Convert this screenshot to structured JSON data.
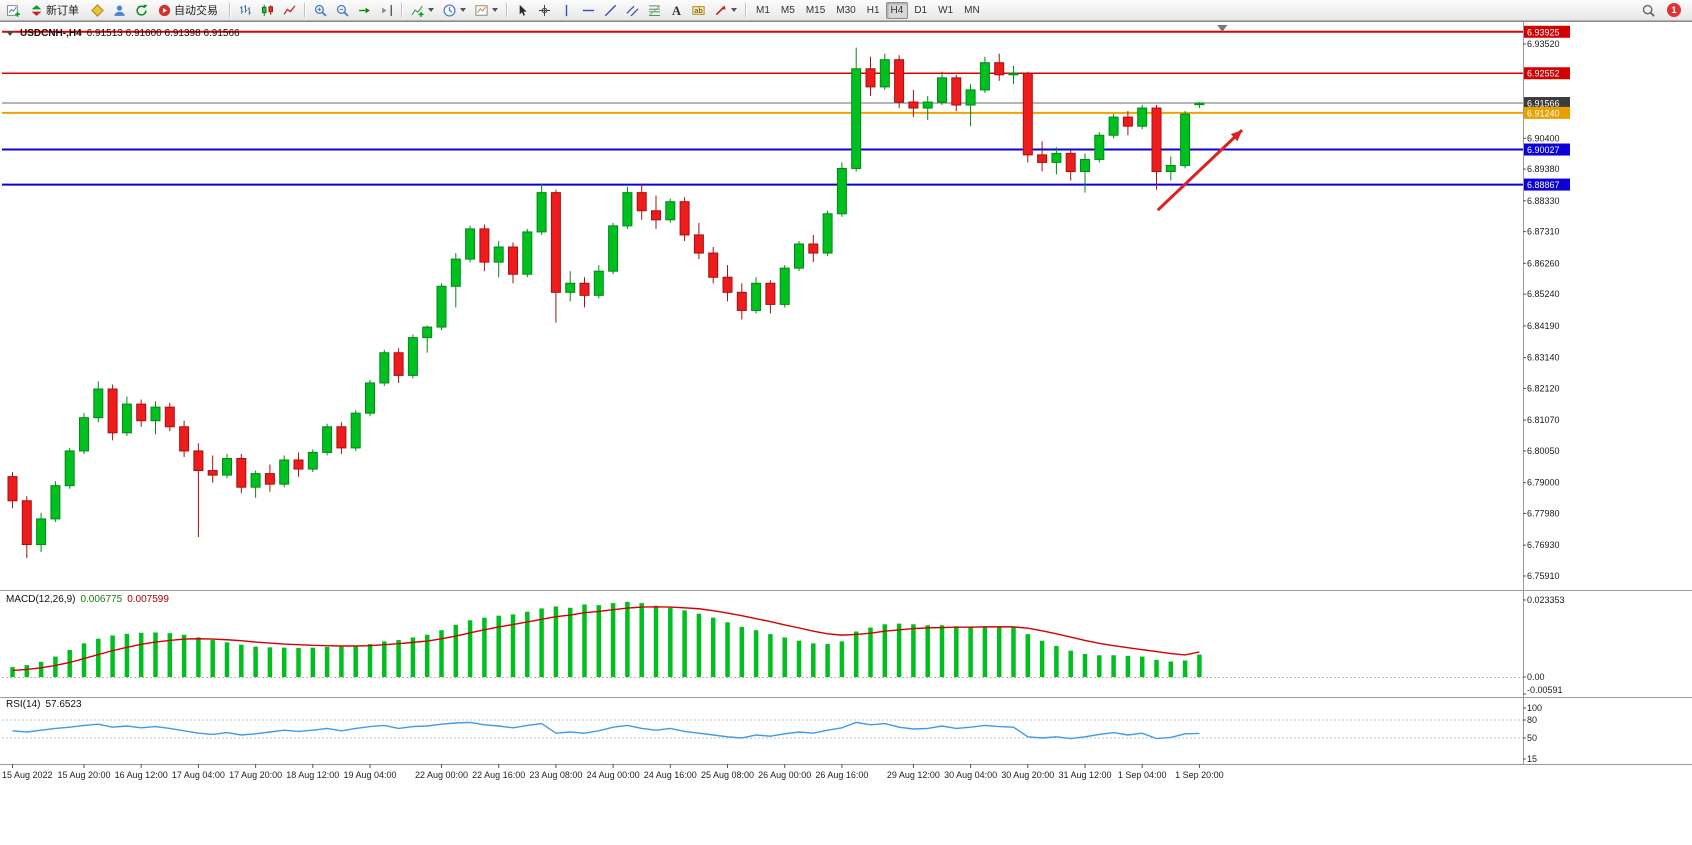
{
  "toolbar": {
    "groups": [
      {
        "name": "standard",
        "items": [
          {
            "id": "new-chart"
          },
          {
            "id": "new-order",
            "label": "新订单"
          },
          {
            "id": "metaeditor"
          },
          {
            "id": "profiles"
          },
          {
            "id": "refresh"
          },
          {
            "id": "autotrading",
            "label": "自动交易"
          }
        ]
      },
      {
        "name": "chart-types",
        "items": [
          {
            "id": "bars"
          },
          {
            "id": "candles"
          },
          {
            "id": "line-chart"
          }
        ]
      },
      {
        "name": "zoom",
        "items": [
          {
            "id": "zoom-in"
          },
          {
            "id": "zoom-out"
          },
          {
            "id": "auto-scroll"
          },
          {
            "id": "chart-shift"
          }
        ]
      },
      {
        "name": "chart-tools",
        "items": [
          {
            "id": "indicators",
            "dropdown": true
          },
          {
            "id": "periods",
            "dropdown": true
          },
          {
            "id": "templates",
            "dropdown": true
          }
        ]
      },
      {
        "name": "line-studies",
        "items": [
          {
            "id": "cursor"
          },
          {
            "id": "crosshair"
          },
          {
            "id": "vertical-line"
          },
          {
            "id": "horizontal-line"
          },
          {
            "id": "trendline"
          },
          {
            "id": "channel"
          },
          {
            "id": "fibonacci"
          },
          {
            "id": "text"
          },
          {
            "id": "text-label"
          },
          {
            "id": "arrows",
            "dropdown": true
          }
        ]
      },
      {
        "name": "timeframes",
        "type": "timeframes",
        "items": [
          "M1",
          "M5",
          "M15",
          "M30",
          "H1",
          "H4",
          "D1",
          "W1",
          "MN"
        ],
        "active": "H4"
      }
    ],
    "right": {
      "badge": "1"
    }
  },
  "chart_data": {
    "type": "candlestick",
    "title": "USDCNH-,H4",
    "ohlc_text": "6.91513 6.91600 6.91398 6.91566",
    "colors": {
      "up": "#00c020",
      "up_border": "#008a16",
      "down": "#ee1c1c",
      "down_border": "#a80f0f",
      "macd_hist": "#00c020",
      "macd_signal": "#d40000",
      "rsi_line": "#3d9be9",
      "hline_red": "#e00000",
      "hline_orange": "#f2a200",
      "hline_blue": "#0b00d8"
    },
    "candles": [
      [
        6.792,
        6.7935,
        6.7815,
        6.784
      ],
      [
        6.784,
        6.7855,
        6.765,
        6.7695
      ],
      [
        6.7695,
        6.78,
        6.767,
        6.778
      ],
      [
        6.778,
        6.7905,
        6.777,
        6.789
      ],
      [
        6.789,
        6.8015,
        6.788,
        6.8005
      ],
      [
        6.8005,
        6.813,
        6.7995,
        6.8115
      ],
      [
        6.8115,
        6.8235,
        6.81,
        6.821
      ],
      [
        6.821,
        6.8225,
        6.804,
        6.8065
      ],
      [
        6.8065,
        6.8185,
        6.8055,
        6.816
      ],
      [
        6.816,
        6.8175,
        6.8085,
        6.8105
      ],
      [
        6.8105,
        6.817,
        6.806,
        6.815
      ],
      [
        6.815,
        6.8165,
        6.807,
        6.8085
      ],
      [
        6.8085,
        6.8105,
        6.7985,
        6.8005
      ],
      [
        6.8005,
        6.803,
        6.772,
        6.794
      ],
      [
        6.794,
        6.799,
        6.79,
        6.7925
      ],
      [
        6.7925,
        6.7995,
        6.7915,
        6.798
      ],
      [
        6.798,
        6.7995,
        6.7865,
        6.7885
      ],
      [
        6.7885,
        6.794,
        6.785,
        6.793
      ],
      [
        6.793,
        6.796,
        6.787,
        6.7895
      ],
      [
        6.7895,
        6.799,
        6.7885,
        6.7975
      ],
      [
        6.7975,
        6.8,
        6.792,
        6.7945
      ],
      [
        6.7945,
        6.801,
        6.7935,
        6.8
      ],
      [
        6.8,
        6.8095,
        6.799,
        6.8085
      ],
      [
        6.8085,
        6.81,
        6.7995,
        6.8015
      ],
      [
        6.8015,
        6.814,
        6.8005,
        6.813
      ],
      [
        6.813,
        6.824,
        6.812,
        6.823
      ],
      [
        6.823,
        6.834,
        6.822,
        6.833
      ],
      [
        6.833,
        6.8345,
        6.823,
        6.8255
      ],
      [
        6.8255,
        6.839,
        6.8245,
        6.838
      ],
      [
        6.838,
        6.842,
        6.833,
        6.8415
      ],
      [
        6.8415,
        6.856,
        6.8405,
        6.855
      ],
      [
        6.855,
        6.866,
        6.848,
        6.864
      ],
      [
        6.864,
        6.875,
        6.863,
        6.874
      ],
      [
        6.874,
        6.8755,
        6.86,
        6.863
      ],
      [
        6.863,
        6.87,
        6.858,
        6.868
      ],
      [
        6.868,
        6.8695,
        6.856,
        6.859
      ],
      [
        6.859,
        6.874,
        6.858,
        6.873
      ],
      [
        6.873,
        6.889,
        6.872,
        6.886
      ],
      [
        6.886,
        6.887,
        6.843,
        6.853
      ],
      [
        6.853,
        6.86,
        6.85,
        6.856
      ],
      [
        6.856,
        6.858,
        6.848,
        6.852
      ],
      [
        6.852,
        6.862,
        6.851,
        6.86
      ],
      [
        6.86,
        6.876,
        6.859,
        6.875
      ],
      [
        6.875,
        6.888,
        6.874,
        6.886
      ],
      [
        6.886,
        6.889,
        6.877,
        6.88
      ],
      [
        6.88,
        6.885,
        6.874,
        6.877
      ],
      [
        6.877,
        6.884,
        6.876,
        6.883
      ],
      [
        6.883,
        6.8845,
        6.87,
        6.872
      ],
      [
        6.872,
        6.876,
        6.864,
        6.866
      ],
      [
        6.866,
        6.868,
        6.856,
        6.858
      ],
      [
        6.858,
        6.862,
        6.85,
        6.853
      ],
      [
        6.853,
        6.856,
        6.844,
        6.847
      ],
      [
        6.847,
        6.858,
        6.846,
        6.856
      ],
      [
        6.856,
        6.857,
        6.846,
        6.849
      ],
      [
        6.849,
        6.862,
        6.848,
        6.861
      ],
      [
        6.861,
        6.87,
        6.86,
        6.869
      ],
      [
        6.869,
        6.872,
        6.863,
        6.866
      ],
      [
        6.866,
        6.88,
        6.865,
        6.879
      ],
      [
        6.879,
        6.896,
        6.878,
        6.894
      ],
      [
        6.894,
        6.934,
        6.893,
        6.927
      ],
      [
        6.927,
        6.931,
        6.918,
        6.921
      ],
      [
        6.921,
        6.932,
        6.92,
        6.93
      ],
      [
        6.93,
        6.9315,
        6.914,
        6.916
      ],
      [
        6.916,
        6.92,
        6.911,
        6.914
      ],
      [
        6.914,
        6.918,
        6.91,
        6.916
      ],
      [
        6.916,
        6.926,
        6.915,
        6.924
      ],
      [
        6.924,
        6.925,
        6.913,
        6.915
      ],
      [
        6.915,
        6.922,
        6.908,
        6.92
      ],
      [
        6.92,
        6.931,
        6.919,
        6.929
      ],
      [
        6.929,
        6.932,
        6.923,
        6.925
      ],
      [
        6.925,
        6.928,
        6.922,
        6.9255
      ],
      [
        6.9255,
        6.926,
        6.896,
        6.8985
      ],
      [
        6.8985,
        6.903,
        6.893,
        6.896
      ],
      [
        6.896,
        6.901,
        6.892,
        6.899
      ],
      [
        6.899,
        6.9,
        6.89,
        6.893
      ],
      [
        6.893,
        6.899,
        6.886,
        6.897
      ],
      [
        6.897,
        6.906,
        6.896,
        6.905
      ],
      [
        6.905,
        6.912,
        6.904,
        6.911
      ],
      [
        6.911,
        6.913,
        6.905,
        6.908
      ],
      [
        6.908,
        6.915,
        6.907,
        6.914
      ],
      [
        6.914,
        6.915,
        6.887,
        6.893
      ],
      [
        6.893,
        6.898,
        6.89,
        6.895
      ],
      [
        6.895,
        6.913,
        6.894,
        6.912
      ],
      [
        6.91513,
        6.916,
        6.91398,
        6.91566
      ]
    ],
    "time_ticks": [
      {
        "label": "15 Aug 2022",
        "i": 0
      },
      {
        "label": "15 Aug 20:00",
        "i": 5
      },
      {
        "label": "16 Aug 12:00",
        "i": 9
      },
      {
        "label": "17 Aug 04:00",
        "i": 13
      },
      {
        "label": "17 Aug 20:00",
        "i": 17
      },
      {
        "label": "18 Aug 12:00",
        "i": 21
      },
      {
        "label": "19 Aug 04:00",
        "i": 25
      },
      {
        "label": "22 Aug 00:00",
        "i": 30
      },
      {
        "label": "22 Aug 16:00",
        "i": 34
      },
      {
        "label": "23 Aug 08:00",
        "i": 38
      },
      {
        "label": "24 Aug 00:00",
        "i": 42
      },
      {
        "label": "24 Aug 16:00",
        "i": 46
      },
      {
        "label": "25 Aug 08:00",
        "i": 50
      },
      {
        "label": "26 Aug 00:00",
        "i": 54
      },
      {
        "label": "26 Aug 16:00",
        "i": 58
      },
      {
        "label": "29 Aug 12:00",
        "i": 63
      },
      {
        "label": "30 Aug 04:00",
        "i": 67
      },
      {
        "label": "30 Aug 20:00",
        "i": 71
      },
      {
        "label": "31 Aug 12:00",
        "i": 75
      },
      {
        "label": "1 Sep 04:00",
        "i": 79
      },
      {
        "label": "1 Sep 20:00",
        "i": 83
      }
    ],
    "price_axis": {
      "ticks": [
        "6.93520",
        "6.90400",
        "6.89380",
        "6.88330",
        "6.87310",
        "6.86260",
        "6.85240",
        "6.84190",
        "6.83140",
        "6.82120",
        "6.81070",
        "6.80050",
        "6.79000",
        "6.77980",
        "6.76930",
        "6.75910"
      ],
      "badges": [
        {
          "value": "6.93925",
          "price": 6.93925,
          "bg": "#d20000"
        },
        {
          "value": "6.92552",
          "price": 6.92552,
          "bg": "#d20000"
        },
        {
          "value": "6.91566",
          "price": 6.91566,
          "bg": "#3c3c3c"
        },
        {
          "value": "6.91240",
          "price": 6.9124,
          "bg": "#e8a000"
        },
        {
          "value": "6.90027",
          "price": 6.90027,
          "bg": "#0b00d8"
        },
        {
          "value": "6.88867",
          "price": 6.88867,
          "bg": "#0b00d8"
        }
      ]
    },
    "hlines": [
      {
        "name": "resistance-line-upper-red",
        "price": 6.93925,
        "color": "#e00000",
        "width": 2
      },
      {
        "name": "resistance-line-red",
        "price": 6.92552,
        "color": "#e00000",
        "width": 1.5
      },
      {
        "name": "pivot-line-orange",
        "price": 6.9124,
        "color": "#f2a200",
        "width": 2
      },
      {
        "name": "support-line-blue-upper",
        "price": 6.90027,
        "color": "#0b00d8",
        "width": 2
      },
      {
        "name": "support-line-blue-lower",
        "price": 6.88867,
        "color": "#0b00d8",
        "width": 2
      }
    ],
    "bid_line": {
      "price": 6.91566,
      "color": "#6e6e6e"
    },
    "arrow": {
      "from_index": 80.4,
      "from_price": 6.8802,
      "to_index": 86.3,
      "to_price": 6.9067,
      "color": "#e02020"
    },
    "shift_marker_index": 84.6,
    "macd": {
      "label": "MACD(12,26,9)",
      "value_main": "0.006775",
      "value_signal": "0.007599",
      "axis": {
        "max": "0.023353",
        "zero": "0.00",
        "min": "-0.00591"
      },
      "histogram": [
        0.003,
        0.0036,
        0.0046,
        0.0062,
        0.0082,
        0.0102,
        0.0116,
        0.0126,
        0.0131,
        0.0134,
        0.0135,
        0.0133,
        0.0128,
        0.012,
        0.0112,
        0.0105,
        0.0098,
        0.0092,
        0.009,
        0.0089,
        0.0088,
        0.0089,
        0.0091,
        0.0092,
        0.0095,
        0.01,
        0.0108,
        0.0112,
        0.012,
        0.0128,
        0.0142,
        0.0158,
        0.0172,
        0.018,
        0.0186,
        0.019,
        0.0198,
        0.0208,
        0.0214,
        0.021,
        0.022,
        0.0218,
        0.0224,
        0.0228,
        0.0224,
        0.0216,
        0.021,
        0.0202,
        0.0192,
        0.018,
        0.0166,
        0.0152,
        0.0142,
        0.013,
        0.012,
        0.011,
        0.0102,
        0.01,
        0.0108,
        0.0138,
        0.015,
        0.016,
        0.0162,
        0.016,
        0.0157,
        0.0157,
        0.0154,
        0.0152,
        0.0154,
        0.0154,
        0.0152,
        0.013,
        0.011,
        0.0094,
        0.008,
        0.007,
        0.0066,
        0.0066,
        0.0064,
        0.0062,
        0.0052,
        0.0047,
        0.005,
        0.0068
      ],
      "signal": [
        0.002,
        0.0023,
        0.0028,
        0.0035,
        0.0044,
        0.0056,
        0.0068,
        0.008,
        0.009,
        0.0099,
        0.0106,
        0.0111,
        0.0115,
        0.0116,
        0.0115,
        0.0113,
        0.011,
        0.0106,
        0.0103,
        0.01,
        0.0098,
        0.0096,
        0.0095,
        0.0094,
        0.0094,
        0.0095,
        0.0098,
        0.0101,
        0.0105,
        0.0109,
        0.0116,
        0.0124,
        0.0134,
        0.0143,
        0.0152,
        0.0159,
        0.0167,
        0.0175,
        0.0183,
        0.0188,
        0.0195,
        0.0199,
        0.0204,
        0.0209,
        0.0212,
        0.0213,
        0.0212,
        0.021,
        0.0207,
        0.0201,
        0.0194,
        0.0186,
        0.0177,
        0.0168,
        0.0158,
        0.0149,
        0.0139,
        0.0131,
        0.0127,
        0.0129,
        0.0133,
        0.0139,
        0.0143,
        0.0147,
        0.0149,
        0.015,
        0.0151,
        0.0151,
        0.0152,
        0.0152,
        0.0152,
        0.0148,
        0.014,
        0.0131,
        0.0121,
        0.0111,
        0.0102,
        0.0095,
        0.0089,
        0.0083,
        0.0077,
        0.0071,
        0.0067,
        0.0076
      ]
    },
    "rsi": {
      "label": "RSI(14)",
      "value": "57.6523",
      "axis_labels": [
        "100",
        "80",
        "50",
        "15"
      ],
      "levels": [
        80,
        50
      ],
      "series": [
        62,
        60,
        63,
        66,
        68,
        71,
        73,
        68,
        70,
        67,
        69,
        66,
        62,
        58,
        56,
        59,
        55,
        57,
        60,
        63,
        61,
        63,
        66,
        62,
        66,
        69,
        71,
        66,
        69,
        70,
        73,
        75,
        76,
        72,
        70,
        67,
        71,
        74,
        58,
        60,
        58,
        62,
        68,
        71,
        66,
        63,
        66,
        61,
        58,
        55,
        52,
        50,
        55,
        53,
        57,
        60,
        58,
        63,
        67,
        76,
        72,
        74,
        68,
        65,
        66,
        70,
        66,
        68,
        71,
        69,
        68,
        52,
        50,
        52,
        49,
        52,
        56,
        59,
        55,
        58,
        49,
        51,
        57,
        57.65
      ]
    }
  }
}
